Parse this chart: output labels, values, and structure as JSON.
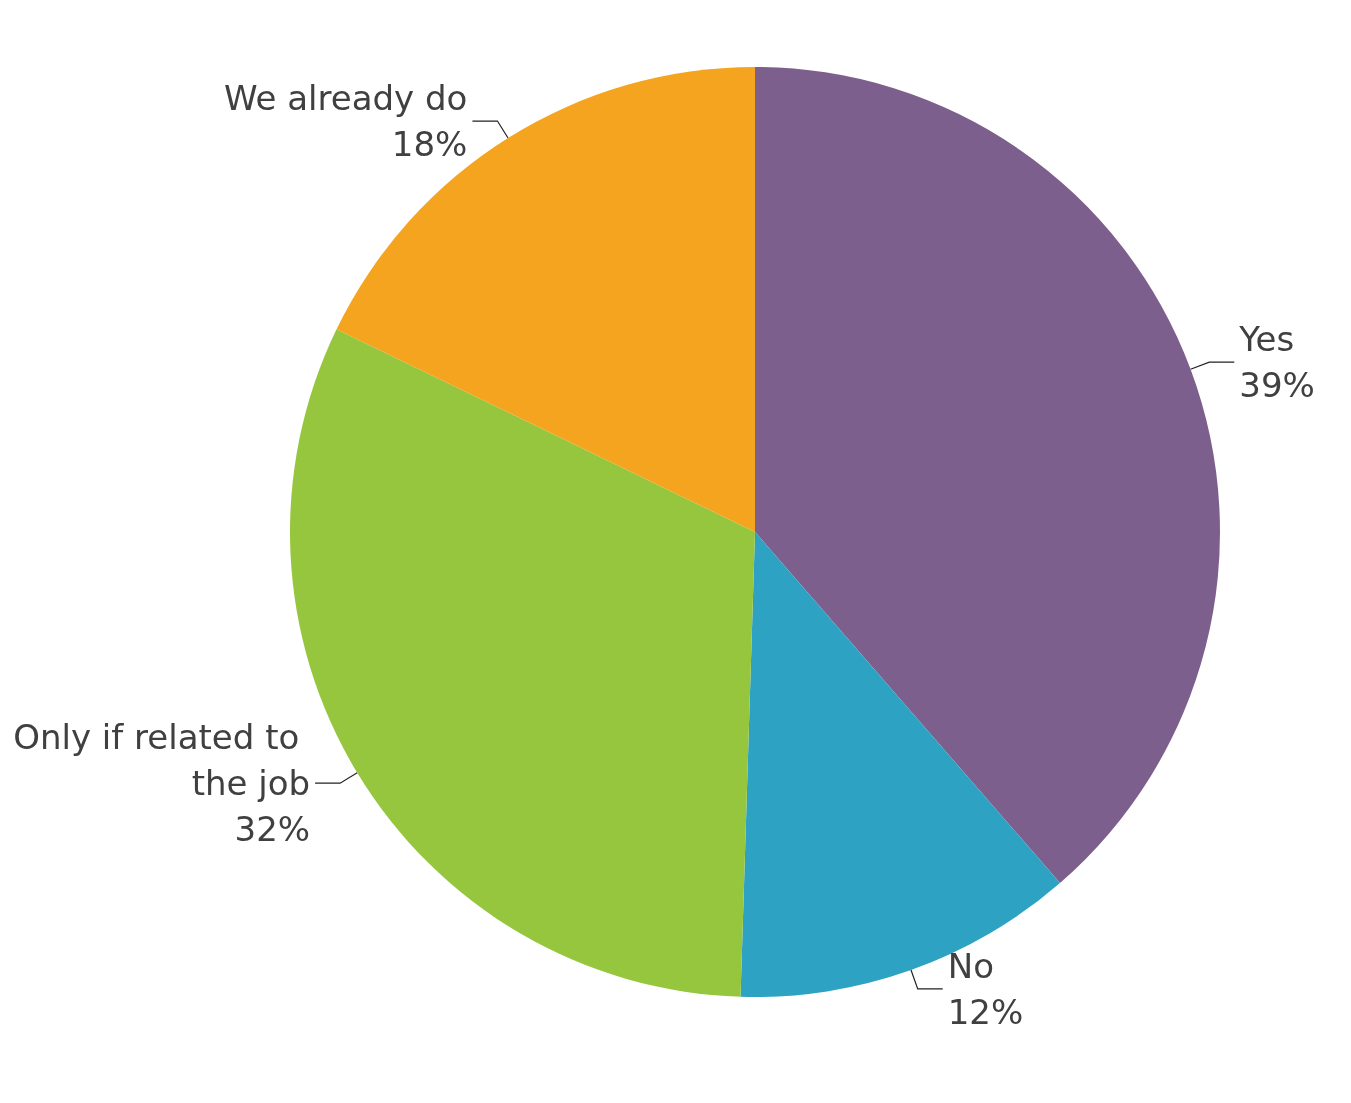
{
  "chart_data": {
    "type": "pie",
    "categories": [
      "Yes",
      "No",
      "Only if related to the job",
      "We already do"
    ],
    "values": [
      39,
      12,
      32,
      18
    ],
    "value_labels": [
      "39%",
      "12%",
      "32%",
      "18%"
    ],
    "colors": [
      "#7d5f8d",
      "#2ea2c2",
      "#96c63e",
      "#f4a41f"
    ],
    "legend": false
  }
}
